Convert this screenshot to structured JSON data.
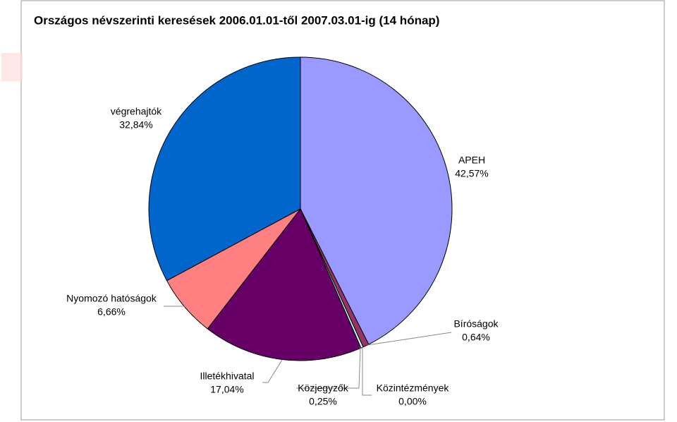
{
  "chart_data": {
    "type": "pie",
    "title": "Országos névszerinti keresések  2006.01.01-től 2007.03.01-ig  (14 hónap)",
    "categories": [
      "APEH",
      "Bíróságok",
      "Közintézmények",
      "Közjegyzők",
      "Illetékhivatal",
      "Nyomozó hatóságok",
      "végrehajtók"
    ],
    "values": [
      42.57,
      0.64,
      0.0,
      0.25,
      17.04,
      6.66,
      32.84
    ],
    "value_labels": [
      "42,57%",
      "0,64%",
      "0,00%",
      "0,25%",
      "17,04%",
      "6,66%",
      "32,84%"
    ],
    "colors": [
      "#9999ff",
      "#993366",
      "#ffffcc",
      "#ccffff",
      "#660066",
      "#ff8080",
      "#0066cc"
    ]
  }
}
